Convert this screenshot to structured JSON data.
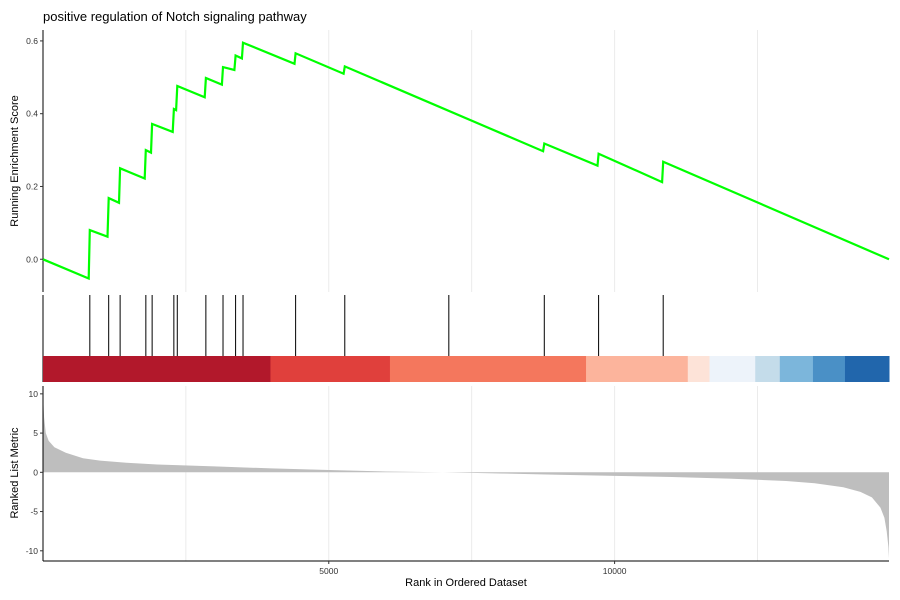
{
  "chart_data": [
    {
      "type": "line",
      "title": "positive regulation of Notch signaling pathway",
      "xlabel": "",
      "ylabel": "Running Enrichment Score",
      "xlim": [
        1,
        14800
      ],
      "ylim": [
        -0.09,
        0.63
      ],
      "yticks": [
        0.0,
        0.2,
        0.4,
        0.6
      ],
      "ytick_labels": [
        "0.0",
        "0.2",
        "0.4",
        "0.6"
      ],
      "grid": "vertical",
      "line_color": "#00ff00",
      "points": [
        [
          1,
          0.0
        ],
        [
          800,
          -0.053
        ],
        [
          820,
          0.08
        ],
        [
          1130,
          0.062
        ],
        [
          1150,
          0.168
        ],
        [
          1330,
          0.155
        ],
        [
          1350,
          0.25
        ],
        [
          1780,
          0.222
        ],
        [
          1800,
          0.3
        ],
        [
          1890,
          0.293
        ],
        [
          1910,
          0.372
        ],
        [
          2270,
          0.35
        ],
        [
          2290,
          0.413
        ],
        [
          2330,
          0.41
        ],
        [
          2350,
          0.476
        ],
        [
          2830,
          0.445
        ],
        [
          2850,
          0.498
        ],
        [
          3130,
          0.48
        ],
        [
          3150,
          0.528
        ],
        [
          3350,
          0.52
        ],
        [
          3370,
          0.56
        ],
        [
          3480,
          0.552
        ],
        [
          3500,
          0.595
        ],
        [
          4400,
          0.537
        ],
        [
          4420,
          0.566
        ],
        [
          5260,
          0.51
        ],
        [
          5280,
          0.53
        ],
        [
          8750,
          0.297
        ],
        [
          8770,
          0.318
        ],
        [
          9700,
          0.257
        ],
        [
          9720,
          0.29
        ],
        [
          10830,
          0.212
        ],
        [
          10850,
          0.268
        ],
        [
          14800,
          0.0
        ]
      ]
    },
    {
      "type": "scatter",
      "title": "",
      "xlabel": "",
      "ylabel": "",
      "marker": "vertical-tick",
      "hits": [
        820,
        1150,
        1350,
        1800,
        1910,
        2290,
        2350,
        2850,
        3150,
        3370,
        3500,
        4420,
        5280,
        7100,
        8770,
        9720,
        10850
      ],
      "color_bands": [
        {
          "from": 1,
          "to": 3980,
          "color": "#b2182b"
        },
        {
          "from": 3980,
          "to": 6070,
          "color": "#e0403c"
        },
        {
          "from": 6070,
          "to": 9500,
          "color": "#f4775d"
        },
        {
          "from": 9500,
          "to": 11280,
          "color": "#fcb49c"
        },
        {
          "from": 11280,
          "to": 11660,
          "color": "#fde3d8"
        },
        {
          "from": 11660,
          "to": 12460,
          "color": "#edf3fa"
        },
        {
          "from": 12460,
          "to": 12890,
          "color": "#c4dcea"
        },
        {
          "from": 12890,
          "to": 13470,
          "color": "#7cb6db"
        },
        {
          "from": 13470,
          "to": 14030,
          "color": "#4a90c6"
        },
        {
          "from": 14030,
          "to": 14800,
          "color": "#2166ac"
        }
      ]
    },
    {
      "type": "area",
      "title": "",
      "xlabel": "Rank in Ordered Dataset",
      "ylabel": "Ranked List Metric",
      "xlim": [
        1,
        14800
      ],
      "ylim": [
        -11.3,
        11
      ],
      "xticks": [
        5000,
        10000
      ],
      "xtick_labels": [
        "5000",
        "10000"
      ],
      "yticks": [
        10,
        5,
        0,
        -5,
        -10
      ],
      "ytick_labels": [
        "10",
        "5",
        "0",
        "-5",
        "-10"
      ],
      "grid": "vertical",
      "fill_color": "#bebebe",
      "points": [
        [
          1,
          10.0
        ],
        [
          20,
          7.0
        ],
        [
          50,
          5.0
        ],
        [
          100,
          4.0
        ],
        [
          200,
          3.2
        ],
        [
          400,
          2.5
        ],
        [
          700,
          1.8
        ],
        [
          1000,
          1.5
        ],
        [
          1500,
          1.2
        ],
        [
          2000,
          1.0
        ],
        [
          3000,
          0.75
        ],
        [
          4000,
          0.5
        ],
        [
          5000,
          0.3
        ],
        [
          6000,
          0.1
        ],
        [
          7000,
          0.0
        ],
        [
          8000,
          -0.15
        ],
        [
          9000,
          -0.3
        ],
        [
          10000,
          -0.45
        ],
        [
          11000,
          -0.6
        ],
        [
          12000,
          -0.8
        ],
        [
          13000,
          -1.1
        ],
        [
          13500,
          -1.4
        ],
        [
          14000,
          -1.9
        ],
        [
          14300,
          -2.5
        ],
        [
          14500,
          -3.2
        ],
        [
          14650,
          -4.5
        ],
        [
          14720,
          -5.8
        ],
        [
          14760,
          -7.5
        ],
        [
          14790,
          -9.5
        ],
        [
          14800,
          -11.0
        ]
      ]
    }
  ]
}
